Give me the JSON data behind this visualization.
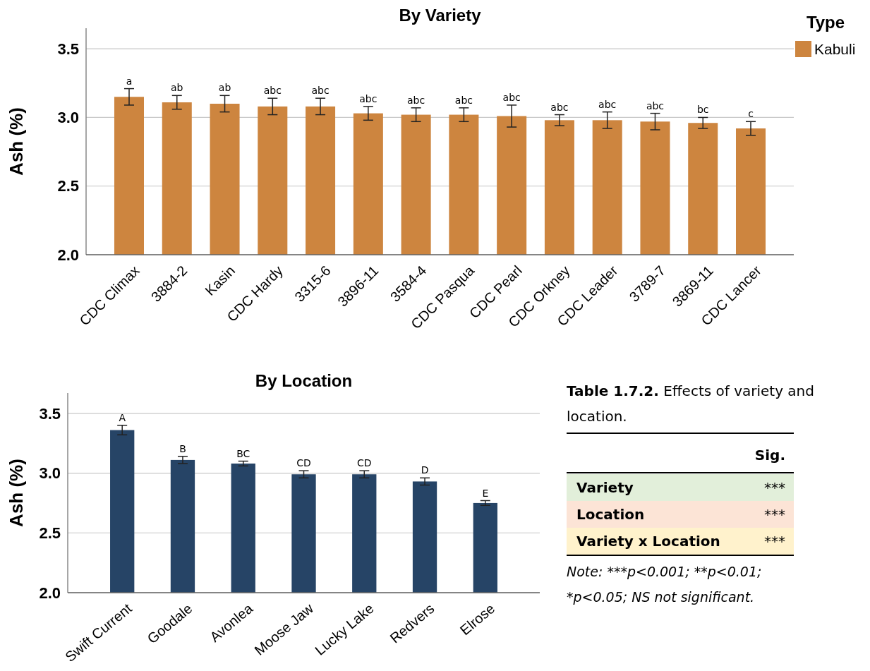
{
  "chart_data": [
    {
      "type": "bar",
      "title": "By Variety",
      "ylabel": "Ash (%)",
      "legend_title": "Type",
      "legend": "top right",
      "grid": "y",
      "categories": [
        "CDC Climax",
        "3884-2",
        "Kasin",
        "CDC Hardy",
        "3315-6",
        "3896-11",
        "3584-4",
        "CDC Pasqua",
        "CDC Pearl",
        "CDC Orkney",
        "CDC Leader",
        "3789-7",
        "3869-11",
        "CDC Lancer"
      ],
      "series": [
        {
          "name": "Kabuli",
          "color": "#cd853f",
          "values": [
            3.15,
            3.11,
            3.1,
            3.08,
            3.08,
            3.03,
            3.02,
            3.02,
            3.01,
            2.98,
            2.98,
            2.97,
            2.96,
            2.92
          ],
          "errors": [
            0.06,
            0.05,
            0.06,
            0.06,
            0.06,
            0.05,
            0.05,
            0.05,
            0.08,
            0.04,
            0.06,
            0.06,
            0.04,
            0.05
          ]
        }
      ],
      "ylim": [
        2.0,
        3.65
      ],
      "yticks": [
        {
          "value": 2.0,
          "label": "2.0"
        },
        3.5,
        {
          "value": 2.5,
          "label": "2.5"
        },
        {
          "value": 3.0,
          "label": "3.0"
        }
      ],
      "annotations": [
        {
          "text": "a",
          "x": "CDC Climax",
          "y": 3.21
        },
        {
          "text": "ab",
          "x": "3884-2",
          "y": 3.16
        },
        {
          "text": "ab",
          "x": "Kasin",
          "y": 3.16
        },
        {
          "text": "abc",
          "x": "CDC Hardy",
          "y": 3.14
        },
        {
          "text": "abc",
          "x": "3315-6",
          "y": 3.14
        },
        {
          "text": "abc",
          "x": "3896-11",
          "y": 3.08
        },
        {
          "text": "abc",
          "x": "3584-4",
          "y": 3.07
        },
        {
          "text": "abc",
          "x": "CDC Pasqua",
          "y": 3.07
        },
        {
          "text": "abc",
          "x": "CDC Pearl",
          "y": 3.09
        },
        {
          "text": "abc",
          "x": "CDC Orkney",
          "y": 3.02
        },
        {
          "text": "abc",
          "x": "CDC Leader",
          "y": 3.04
        },
        {
          "text": "abc",
          "x": "3789-7",
          "y": 3.03
        },
        {
          "text": "bc",
          "x": "3869-11",
          "y": 3.0
        },
        {
          "text": "c",
          "x": "CDC Lancer",
          "y": 2.97
        }
      ]
    },
    {
      "type": "bar",
      "title": "By Location",
      "ylabel": "Ash (%)",
      "grid": "y",
      "categories": [
        "Swift Current",
        "Goodale",
        "Avonlea",
        "Moose Jaw",
        "Lucky Lake",
        "Redvers",
        "Elrose"
      ],
      "series": [
        {
          "color": "#264466",
          "values": [
            3.36,
            3.11,
            3.08,
            2.99,
            2.99,
            2.93,
            2.75
          ],
          "errors": [
            0.04,
            0.03,
            0.02,
            0.03,
            0.03,
            0.03,
            0.02
          ]
        }
      ],
      "ylim": [
        2.0,
        3.67
      ],
      "yticks": [
        {
          "value": 2.0,
          "label": "2.0"
        },
        {
          "value": 2.5,
          "label": "2.5"
        },
        {
          "value": 3.0,
          "label": "3.0"
        },
        3.5
      ],
      "annotations": [
        {
          "text": "A",
          "x": "Swift Current",
          "y": 3.4
        },
        {
          "text": "B",
          "x": "Goodale",
          "y": 3.14
        },
        {
          "text": "BC",
          "x": "Avonlea",
          "y": 3.1
        },
        {
          "text": "CD",
          "x": "Moose Jaw",
          "y": 3.02
        },
        {
          "text": "CD",
          "x": "Lucky Lake",
          "y": 3.02
        },
        {
          "text": "D",
          "x": "Redvers",
          "y": 2.96
        },
        {
          "text": "E",
          "x": "Elrose",
          "y": 2.77
        }
      ]
    },
    {
      "type": "other",
      "title": "Table 1.7.2.",
      "subtitle": "Effects of variety and location.",
      "xlabel": "Sig.",
      "categories": [
        "Variety",
        "Location",
        "Variety x Location"
      ],
      "value_labels": [
        "***",
        "***",
        "***"
      ],
      "colors": [
        "#e2efda",
        "#fce4d6",
        "#fff2cc"
      ],
      "annotations": [
        "Note: ***p<0.001; **p<0.01; *p<0.05; NS not significant."
      ]
    }
  ]
}
